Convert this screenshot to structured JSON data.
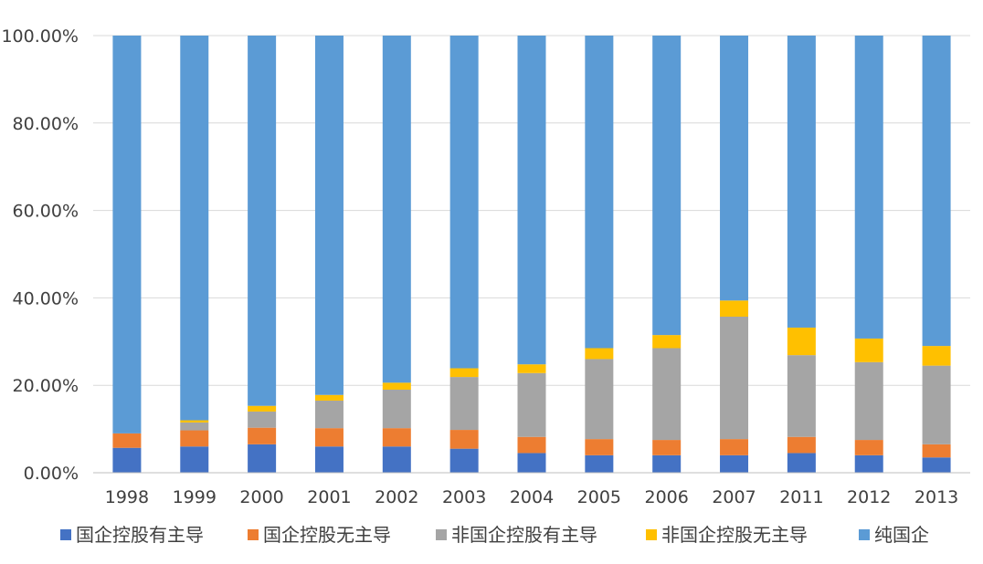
{
  "chart_data": {
    "type": "bar",
    "stacked": true,
    "percent_stacked": true,
    "categories": [
      "1998",
      "1999",
      "2000",
      "2001",
      "2002",
      "2003",
      "2004",
      "2005",
      "2006",
      "2007",
      "2011",
      "2012",
      "2013"
    ],
    "series": [
      {
        "name": "国企控股有主导",
        "color": "#4472C4",
        "values": [
          5.7,
          6.0,
          6.5,
          6.0,
          6.0,
          5.5,
          4.5,
          4.0,
          4.0,
          4.0,
          4.5,
          4.0,
          3.5
        ]
      },
      {
        "name": "国企控股无主导",
        "color": "#ED7D31",
        "values": [
          3.3,
          3.7,
          3.8,
          4.2,
          4.2,
          4.3,
          3.7,
          3.7,
          3.5,
          3.7,
          3.7,
          3.5,
          3.0
        ]
      },
      {
        "name": "非国企控股有主导",
        "color": "#A5A5A5",
        "values": [
          0.0,
          1.8,
          3.7,
          6.3,
          8.8,
          12.1,
          14.6,
          18.3,
          21.0,
          28.0,
          18.7,
          17.8,
          18.0
        ]
      },
      {
        "name": "非国企控股无主导",
        "color": "#FFC000",
        "values": [
          0.0,
          0.5,
          1.3,
          1.3,
          1.6,
          2.0,
          2.0,
          2.5,
          3.0,
          3.7,
          6.3,
          5.4,
          4.5
        ]
      },
      {
        "name": "纯国企",
        "color": "#5B9BD5",
        "values": [
          91.0,
          88.0,
          84.7,
          82.2,
          79.4,
          76.1,
          75.2,
          71.5,
          68.5,
          60.6,
          66.8,
          69.3,
          71.0
        ]
      }
    ],
    "ylim": [
      0,
      100
    ],
    "yticks": [
      "0.00%",
      "20.00%",
      "40.00%",
      "60.00%",
      "80.00%",
      "100.00%"
    ],
    "grid": true,
    "legend_position": "bottom"
  }
}
